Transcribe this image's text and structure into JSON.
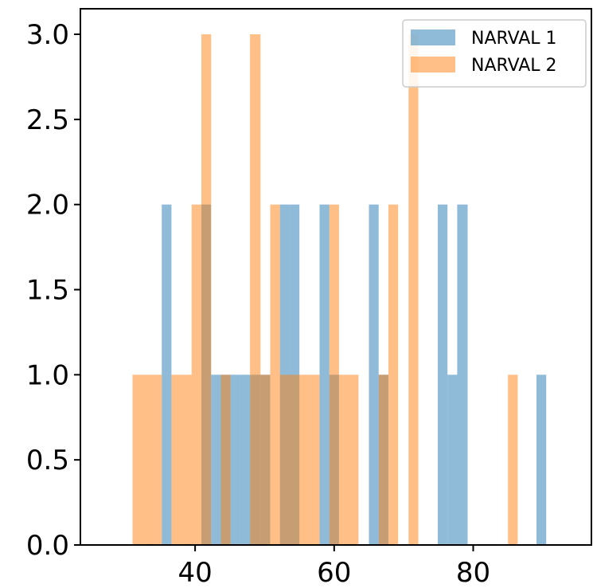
{
  "chart_data": {
    "type": "bar",
    "subtype": "overlapping-histogram",
    "title": "",
    "xlabel": "",
    "ylabel": "",
    "xlim": [
      23.5,
      97
    ],
    "ylim": [
      0,
      3.15
    ],
    "x_ticks": [
      40,
      60,
      80
    ],
    "y_ticks": [
      0.0,
      0.5,
      1.0,
      1.5,
      2.0,
      2.5,
      3.0
    ],
    "x_tick_labels": [
      "40",
      "60",
      "80"
    ],
    "y_tick_labels": [
      "0.0",
      "0.5",
      "1.0",
      "1.5",
      "2.0",
      "2.5",
      "3.0"
    ],
    "grid": false,
    "legend_position": "top-right",
    "series": [
      {
        "name": "NARVAL 1",
        "color": "#1f77b4",
        "opacity": 0.5,
        "bars": [
          {
            "x0": 35.2,
            "x1": 36.6,
            "value": 2
          },
          {
            "x0": 40.9,
            "x1": 42.3,
            "value": 2
          },
          {
            "x0": 42.3,
            "x1": 43.7,
            "value": 1
          },
          {
            "x0": 43.7,
            "x1": 45.1,
            "value": 1
          },
          {
            "x0": 45.1,
            "x1": 46.5,
            "value": 1
          },
          {
            "x0": 46.5,
            "x1": 47.9,
            "value": 1
          },
          {
            "x0": 47.9,
            "x1": 49.4,
            "value": 1
          },
          {
            "x0": 49.4,
            "x1": 50.8,
            "value": 1
          },
          {
            "x0": 52.2,
            "x1": 53.6,
            "value": 2
          },
          {
            "x0": 53.6,
            "x1": 55.0,
            "value": 2
          },
          {
            "x0": 57.9,
            "x1": 59.3,
            "value": 2
          },
          {
            "x0": 59.3,
            "x1": 60.7,
            "value": 1
          },
          {
            "x0": 65.0,
            "x1": 66.4,
            "value": 2
          },
          {
            "x0": 66.4,
            "x1": 67.8,
            "value": 1
          },
          {
            "x0": 74.9,
            "x1": 76.3,
            "value": 2
          },
          {
            "x0": 76.3,
            "x1": 77.7,
            "value": 1
          },
          {
            "x0": 77.7,
            "x1": 79.2,
            "value": 2
          },
          {
            "x0": 89.1,
            "x1": 90.5,
            "value": 1
          }
        ]
      },
      {
        "name": "NARVAL 2",
        "color": "#ff7f0e",
        "opacity": 0.5,
        "bars": [
          {
            "x0": 31.0,
            "x1": 32.4,
            "value": 1
          },
          {
            "x0": 32.4,
            "x1": 33.8,
            "value": 1
          },
          {
            "x0": 33.8,
            "x1": 35.2,
            "value": 1
          },
          {
            "x0": 36.6,
            "x1": 38.0,
            "value": 1
          },
          {
            "x0": 38.0,
            "x1": 39.5,
            "value": 1
          },
          {
            "x0": 39.5,
            "x1": 40.9,
            "value": 2
          },
          {
            "x0": 40.9,
            "x1": 42.3,
            "value": 3
          },
          {
            "x0": 43.7,
            "x1": 45.1,
            "value": 1
          },
          {
            "x0": 47.9,
            "x1": 49.4,
            "value": 3
          },
          {
            "x0": 49.4,
            "x1": 50.8,
            "value": 1
          },
          {
            "x0": 50.8,
            "x1": 52.2,
            "value": 2
          },
          {
            "x0": 52.2,
            "x1": 53.6,
            "value": 1
          },
          {
            "x0": 53.6,
            "x1": 55.0,
            "value": 1
          },
          {
            "x0": 55.0,
            "x1": 56.5,
            "value": 1
          },
          {
            "x0": 56.5,
            "x1": 57.9,
            "value": 1
          },
          {
            "x0": 59.3,
            "x1": 60.7,
            "value": 2
          },
          {
            "x0": 60.7,
            "x1": 62.1,
            "value": 1
          },
          {
            "x0": 62.1,
            "x1": 63.5,
            "value": 1
          },
          {
            "x0": 66.4,
            "x1": 67.8,
            "value": 1
          },
          {
            "x0": 67.8,
            "x1": 69.2,
            "value": 2
          },
          {
            "x0": 70.7,
            "x1": 72.1,
            "value": 3
          },
          {
            "x0": 85.0,
            "x1": 86.4,
            "value": 1
          }
        ]
      }
    ]
  }
}
